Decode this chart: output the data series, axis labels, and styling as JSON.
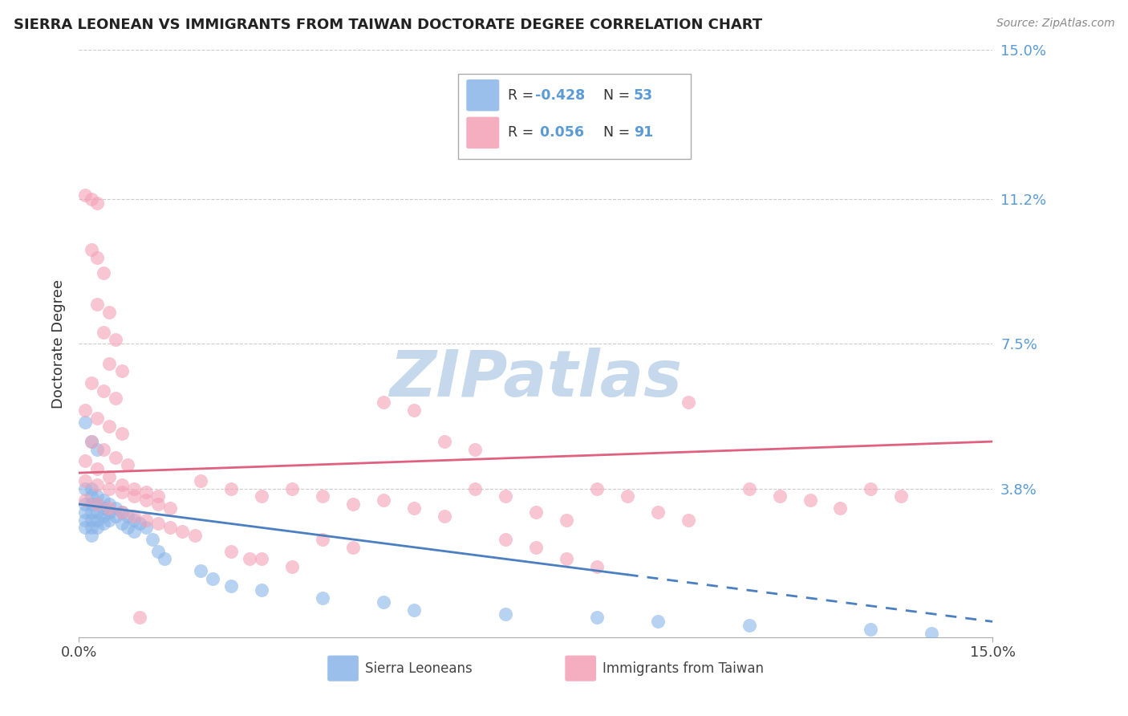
{
  "title": "SIERRA LEONEAN VS IMMIGRANTS FROM TAIWAN DOCTORATE DEGREE CORRELATION CHART",
  "source": "Source: ZipAtlas.com",
  "ylabel": "Doctorate Degree",
  "xlim": [
    0,
    0.15
  ],
  "ylim": [
    0,
    0.15
  ],
  "ytick_labels": [
    "15.0%",
    "11.2%",
    "7.5%",
    "3.8%"
  ],
  "ytick_positions": [
    0.15,
    0.112,
    0.075,
    0.038
  ],
  "blue_color": "#89b4e8",
  "pink_color": "#f4a0b5",
  "blue_line_color": "#4a7fc1",
  "pink_line_color": "#e06080",
  "blue_label": "Sierra Leoneans",
  "pink_label": "Immigrants from Taiwan",
  "watermark": "ZIPatlas",
  "watermark_color": "#c5d8ec",
  "background_color": "#ffffff",
  "blue_scatter": [
    [
      0.001,
      0.034
    ],
    [
      0.001,
      0.032
    ],
    [
      0.001,
      0.03
    ],
    [
      0.001,
      0.028
    ],
    [
      0.002,
      0.036
    ],
    [
      0.002,
      0.034
    ],
    [
      0.002,
      0.032
    ],
    [
      0.002,
      0.03
    ],
    [
      0.002,
      0.028
    ],
    [
      0.002,
      0.026
    ],
    [
      0.003,
      0.036
    ],
    [
      0.003,
      0.034
    ],
    [
      0.003,
      0.032
    ],
    [
      0.003,
      0.03
    ],
    [
      0.003,
      0.028
    ],
    [
      0.004,
      0.035
    ],
    [
      0.004,
      0.033
    ],
    [
      0.004,
      0.031
    ],
    [
      0.004,
      0.029
    ],
    [
      0.005,
      0.034
    ],
    [
      0.005,
      0.032
    ],
    [
      0.005,
      0.03
    ],
    [
      0.006,
      0.033
    ],
    [
      0.006,
      0.031
    ],
    [
      0.007,
      0.032
    ],
    [
      0.007,
      0.029
    ],
    [
      0.008,
      0.031
    ],
    [
      0.008,
      0.028
    ],
    [
      0.009,
      0.03
    ],
    [
      0.009,
      0.027
    ],
    [
      0.01,
      0.029
    ],
    [
      0.011,
      0.028
    ],
    [
      0.012,
      0.025
    ],
    [
      0.013,
      0.022
    ],
    [
      0.014,
      0.02
    ],
    [
      0.001,
      0.055
    ],
    [
      0.002,
      0.05
    ],
    [
      0.003,
      0.048
    ],
    [
      0.001,
      0.038
    ],
    [
      0.002,
      0.038
    ],
    [
      0.02,
      0.017
    ],
    [
      0.022,
      0.015
    ],
    [
      0.025,
      0.013
    ],
    [
      0.03,
      0.012
    ],
    [
      0.04,
      0.01
    ],
    [
      0.05,
      0.009
    ],
    [
      0.055,
      0.007
    ],
    [
      0.07,
      0.006
    ],
    [
      0.085,
      0.005
    ],
    [
      0.095,
      0.004
    ],
    [
      0.11,
      0.003
    ],
    [
      0.13,
      0.002
    ],
    [
      0.14,
      0.001
    ]
  ],
  "pink_scatter": [
    [
      0.001,
      0.113
    ],
    [
      0.002,
      0.112
    ],
    [
      0.003,
      0.111
    ],
    [
      0.002,
      0.099
    ],
    [
      0.003,
      0.097
    ],
    [
      0.004,
      0.093
    ],
    [
      0.003,
      0.085
    ],
    [
      0.005,
      0.083
    ],
    [
      0.004,
      0.078
    ],
    [
      0.006,
      0.076
    ],
    [
      0.005,
      0.07
    ],
    [
      0.007,
      0.068
    ],
    [
      0.002,
      0.065
    ],
    [
      0.004,
      0.063
    ],
    [
      0.006,
      0.061
    ],
    [
      0.001,
      0.058
    ],
    [
      0.003,
      0.056
    ],
    [
      0.005,
      0.054
    ],
    [
      0.007,
      0.052
    ],
    [
      0.002,
      0.05
    ],
    [
      0.004,
      0.048
    ],
    [
      0.006,
      0.046
    ],
    [
      0.008,
      0.044
    ],
    [
      0.001,
      0.045
    ],
    [
      0.003,
      0.043
    ],
    [
      0.005,
      0.041
    ],
    [
      0.007,
      0.039
    ],
    [
      0.009,
      0.038
    ],
    [
      0.011,
      0.037
    ],
    [
      0.013,
      0.036
    ],
    [
      0.001,
      0.04
    ],
    [
      0.003,
      0.039
    ],
    [
      0.005,
      0.038
    ],
    [
      0.007,
      0.037
    ],
    [
      0.009,
      0.036
    ],
    [
      0.011,
      0.035
    ],
    [
      0.013,
      0.034
    ],
    [
      0.015,
      0.033
    ],
    [
      0.001,
      0.035
    ],
    [
      0.003,
      0.034
    ],
    [
      0.005,
      0.033
    ],
    [
      0.007,
      0.032
    ],
    [
      0.009,
      0.031
    ],
    [
      0.011,
      0.03
    ],
    [
      0.013,
      0.029
    ],
    [
      0.015,
      0.028
    ],
    [
      0.017,
      0.027
    ],
    [
      0.019,
      0.026
    ],
    [
      0.02,
      0.04
    ],
    [
      0.025,
      0.038
    ],
    [
      0.03,
      0.036
    ],
    [
      0.035,
      0.038
    ],
    [
      0.04,
      0.036
    ],
    [
      0.045,
      0.034
    ],
    [
      0.05,
      0.06
    ],
    [
      0.055,
      0.058
    ],
    [
      0.05,
      0.035
    ],
    [
      0.055,
      0.033
    ],
    [
      0.06,
      0.031
    ],
    [
      0.065,
      0.038
    ],
    [
      0.07,
      0.036
    ],
    [
      0.075,
      0.032
    ],
    [
      0.08,
      0.03
    ],
    [
      0.085,
      0.038
    ],
    [
      0.09,
      0.036
    ],
    [
      0.095,
      0.032
    ],
    [
      0.1,
      0.03
    ],
    [
      0.1,
      0.06
    ],
    [
      0.11,
      0.038
    ],
    [
      0.115,
      0.036
    ],
    [
      0.12,
      0.035
    ],
    [
      0.125,
      0.033
    ],
    [
      0.13,
      0.038
    ],
    [
      0.135,
      0.036
    ],
    [
      0.06,
      0.05
    ],
    [
      0.065,
      0.048
    ],
    [
      0.04,
      0.025
    ],
    [
      0.045,
      0.023
    ],
    [
      0.03,
      0.02
    ],
    [
      0.035,
      0.018
    ],
    [
      0.025,
      0.022
    ],
    [
      0.028,
      0.02
    ],
    [
      0.07,
      0.025
    ],
    [
      0.075,
      0.023
    ],
    [
      0.08,
      0.02
    ],
    [
      0.085,
      0.018
    ],
    [
      0.01,
      0.005
    ]
  ]
}
